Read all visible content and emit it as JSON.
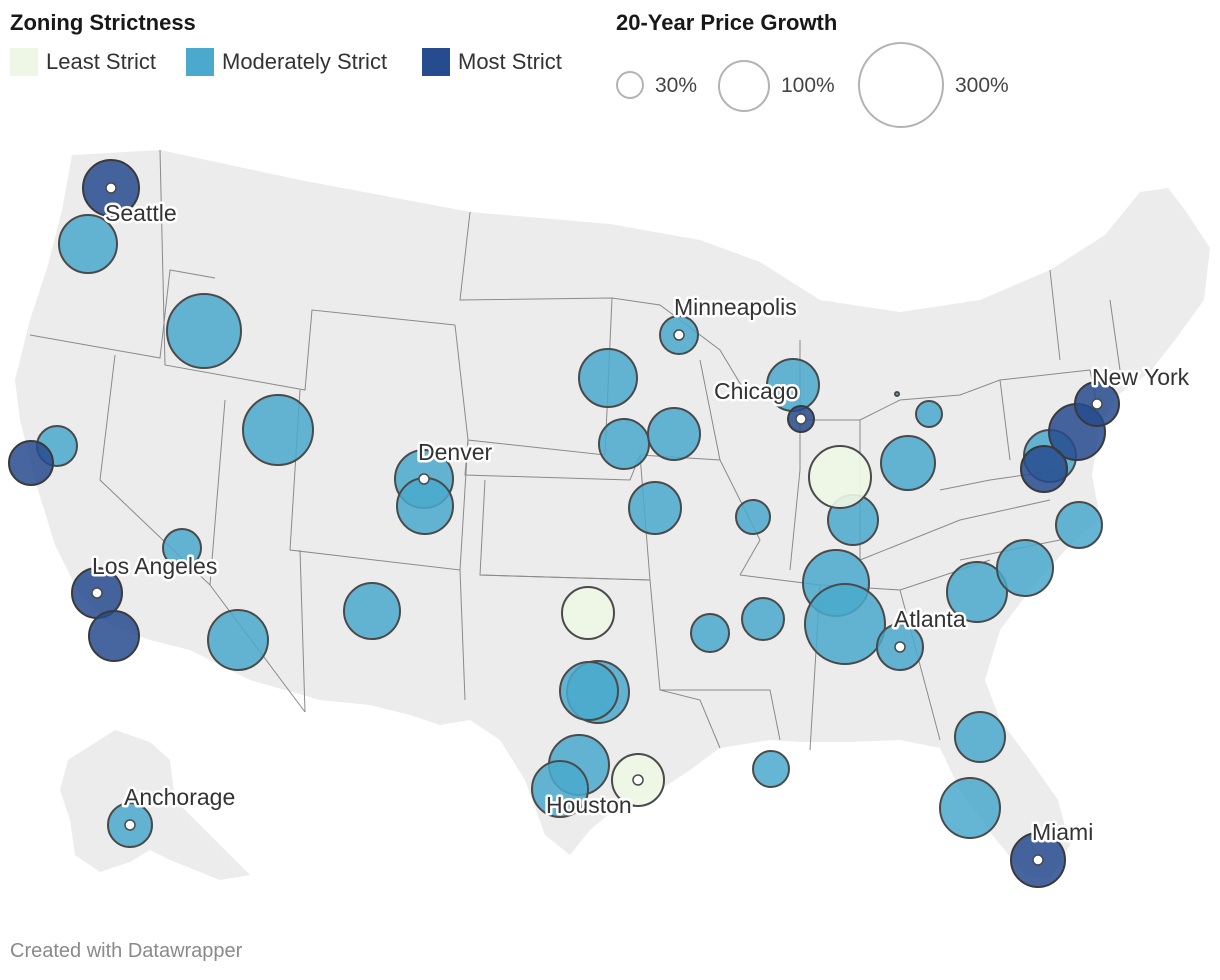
{
  "legend": {
    "strictness_title": "Zoning Strictness",
    "strictness_items": [
      {
        "label": "Least Strict",
        "color": "#eef7e6"
      },
      {
        "label": "Moderately Strict",
        "color": "#4aa9cc"
      },
      {
        "label": "Most Strict",
        "color": "#274b8f"
      }
    ],
    "growth_title": "20-Year Price Growth",
    "growth_items": [
      {
        "label": "30%",
        "value": 30
      },
      {
        "label": "100%",
        "value": 100
      },
      {
        "label": "300%",
        "value": 300
      }
    ]
  },
  "colors": {
    "least": "#eef7e6",
    "moderate": "#4aa9cc",
    "most": "#274b8f",
    "land": "#ececec",
    "state_border": "#8a8a8a"
  },
  "city_labels": [
    "Seattle",
    "Minneapolis",
    "Chicago",
    "New York",
    "Denver",
    "Los Angeles",
    "Atlanta",
    "Houston",
    "Anchorage",
    "Miami"
  ],
  "credit": "Created with Datawrapper"
}
